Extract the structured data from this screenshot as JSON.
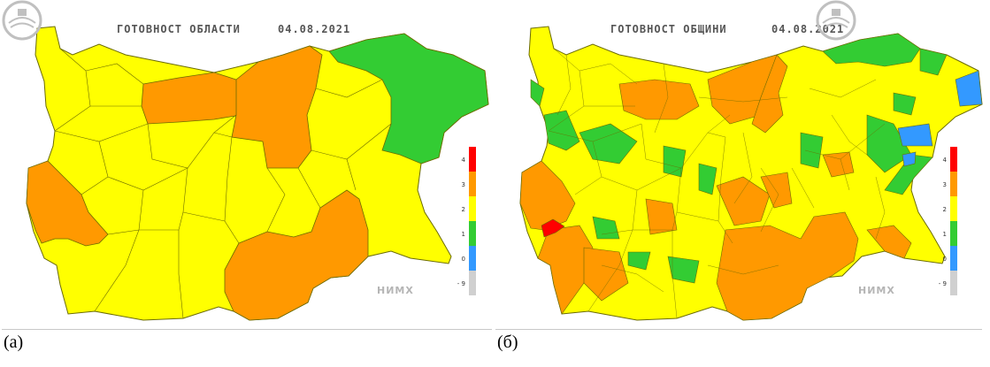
{
  "panels": [
    {
      "title": "ГОТОВНОСТ ОБЛАСТИ",
      "date": "04.08.2021",
      "caption": "(а)",
      "logo_text": "НИМХ"
    },
    {
      "title": "ГОТОВНОСТ ОБЩИНИ",
      "date": "04.08.2021",
      "caption": "(б)",
      "logo_text": "НИМХ"
    }
  ],
  "legend": {
    "levels": [
      {
        "label": "4",
        "color": "#ff0000"
      },
      {
        "label": "3",
        "color": "#ff9900"
      },
      {
        "label": "2",
        "color": "#ffff00"
      },
      {
        "label": "1",
        "color": "#33cc33"
      },
      {
        "label": "0",
        "color": "#3399ff"
      },
      {
        "label": "- 9",
        "color": "#d0d0d0"
      }
    ]
  },
  "colors": {
    "yellow": "#ffff00",
    "orange": "#ff9900",
    "green": "#33cc33",
    "blue": "#3399ff",
    "red": "#ff0000",
    "border": "#7a7a00"
  }
}
